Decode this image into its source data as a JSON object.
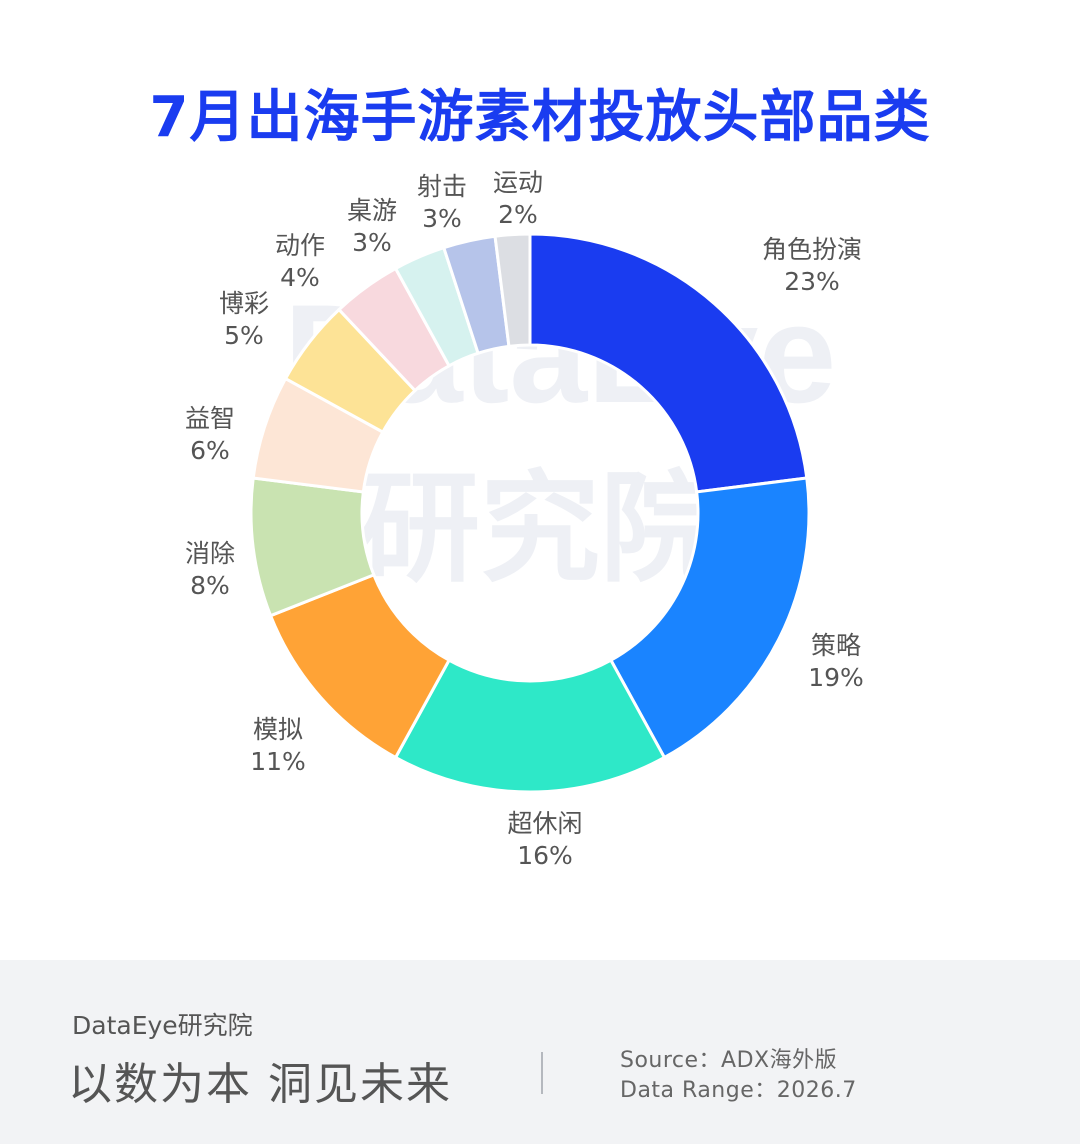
{
  "header": {
    "title": "7月出海手游素材投放头部品类"
  },
  "watermark": {
    "line1": "DataEye",
    "line2": "研究院"
  },
  "chart_data": {
    "type": "pie",
    "title": "7月出海手游素材投放头部品类",
    "unit": "%",
    "slices": [
      {
        "label": "角色扮演",
        "value": 23,
        "display": "23%",
        "color": "#1a3cf0"
      },
      {
        "label": "策略",
        "value": 19,
        "display": "19%",
        "color": "#1a84ff"
      },
      {
        "label": "超休闲",
        "value": 16,
        "display": "16%",
        "color": "#2ee8c8"
      },
      {
        "label": "模拟",
        "value": 11,
        "display": "11%",
        "color": "#ffa336"
      },
      {
        "label": "消除",
        "value": 8,
        "display": "8%",
        "color": "#c9e3b1"
      },
      {
        "label": "益智",
        "value": 6,
        "display": "6%",
        "color": "#fde6d6"
      },
      {
        "label": "博彩",
        "value": 5,
        "display": "5%",
        "color": "#fde396"
      },
      {
        "label": "动作",
        "value": 4,
        "display": "4%",
        "color": "#f8d9de"
      },
      {
        "label": "桌游",
        "value": 3,
        "display": "3%",
        "color": "#d6f2ef"
      },
      {
        "label": "射击",
        "value": 3,
        "display": "3%",
        "color": "#b6c4ea"
      },
      {
        "label": "运动",
        "value": 2,
        "display": "2%",
        "color": "#dcdee3"
      }
    ]
  },
  "footer": {
    "brand": "DataEye研究院",
    "slogan": "以数为本 洞见未来",
    "source": "Source：ADX海外版",
    "data_range": "Data Range：2026.7"
  }
}
